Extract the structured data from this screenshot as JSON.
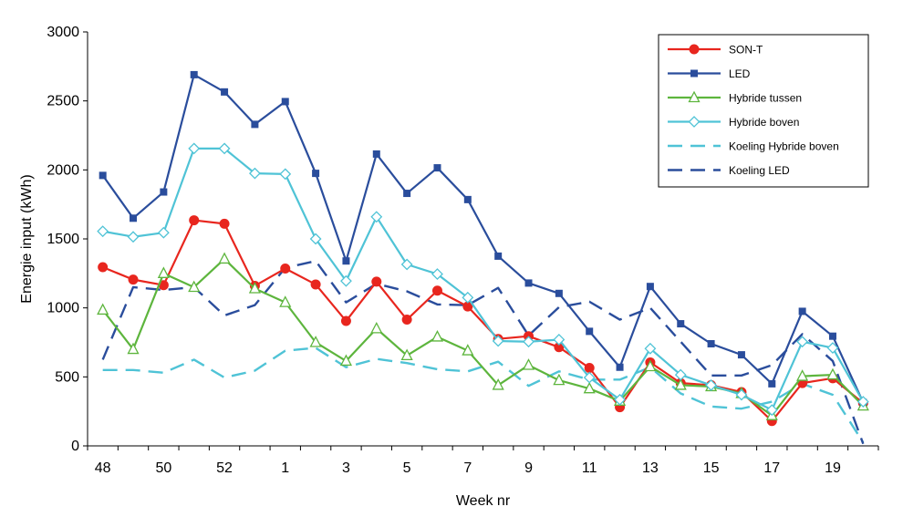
{
  "chart_data": {
    "type": "line",
    "title": "",
    "xlabel": "Week nr",
    "ylabel": "Energie input (kWh)",
    "ylim": [
      0,
      3000
    ],
    "yticks": [
      "0",
      "500",
      "1000",
      "1500",
      "2000",
      "2500",
      "3000"
    ],
    "x": [
      48,
      49,
      50,
      51,
      52,
      53,
      1,
      2,
      3,
      4,
      5,
      6,
      7,
      8,
      9,
      10,
      11,
      12,
      13,
      14,
      15,
      16,
      17,
      18,
      19,
      20
    ],
    "xtick_labels": [
      "48",
      "",
      "50",
      "",
      "52",
      "",
      "1",
      "",
      "3",
      "",
      "5",
      "",
      "7",
      "",
      "9",
      "",
      "11",
      "",
      "13",
      "",
      "15",
      "",
      "17",
      "",
      "19",
      ""
    ],
    "grid": false,
    "legend_position": "top-right",
    "series": [
      {
        "name": "SON-T",
        "color": "#e8261e",
        "marker": "circle",
        "dash": "solid",
        "values": [
          1295,
          1205,
          1165,
          1635,
          1610,
          1160,
          1285,
          1170,
          905,
          1190,
          915,
          1125,
          1010,
          775,
          795,
          715,
          565,
          280,
          605,
          455,
          440,
          390,
          180,
          455,
          490,
          310
        ]
      },
      {
        "name": "LED",
        "color": "#2a4d9c",
        "marker": "square",
        "dash": "solid",
        "values": [
          1960,
          1650,
          1840,
          2690,
          2565,
          2330,
          2495,
          1975,
          1340,
          2115,
          1830,
          2015,
          1785,
          1375,
          1180,
          1105,
          830,
          570,
          1155,
          885,
          740,
          660,
          450,
          975,
          795,
          315
        ]
      },
      {
        "name": "Hybride tussen",
        "color": "#5db53d",
        "marker": "triangle",
        "dash": "solid",
        "values": [
          985,
          700,
          1250,
          1150,
          1355,
          1140,
          1040,
          750,
          615,
          850,
          655,
          790,
          690,
          440,
          585,
          475,
          415,
          325,
          575,
          440,
          430,
          380,
          220,
          505,
          515,
          290
        ]
      },
      {
        "name": "Hybride boven",
        "color": "#4fc3d6",
        "marker": "diamond",
        "dash": "solid",
        "values": [
          1555,
          1515,
          1545,
          2155,
          2155,
          1975,
          1970,
          1500,
          1195,
          1660,
          1315,
          1245,
          1075,
          760,
          755,
          770,
          495,
          335,
          705,
          515,
          440,
          370,
          260,
          755,
          710,
          320
        ]
      },
      {
        "name": "Koeling Hybride boven",
        "color": "#4fc3d6",
        "marker": "none",
        "dash": "long",
        "values": [
          550,
          550,
          530,
          625,
          495,
          545,
          690,
          710,
          570,
          630,
          600,
          555,
          540,
          610,
          435,
          540,
          480,
          480,
          570,
          380,
          285,
          270,
          320,
          450,
          370,
          25
        ]
      },
      {
        "name": "Koeling LED",
        "color": "#2a4d9c",
        "marker": "none",
        "dash": "long",
        "values": [
          625,
          1150,
          1130,
          1150,
          945,
          1020,
          1290,
          1340,
          1040,
          1175,
          1120,
          1025,
          1020,
          1145,
          800,
          1005,
          1045,
          915,
          1000,
          755,
          510,
          510,
          585,
          810,
          615,
          15
        ]
      }
    ]
  }
}
